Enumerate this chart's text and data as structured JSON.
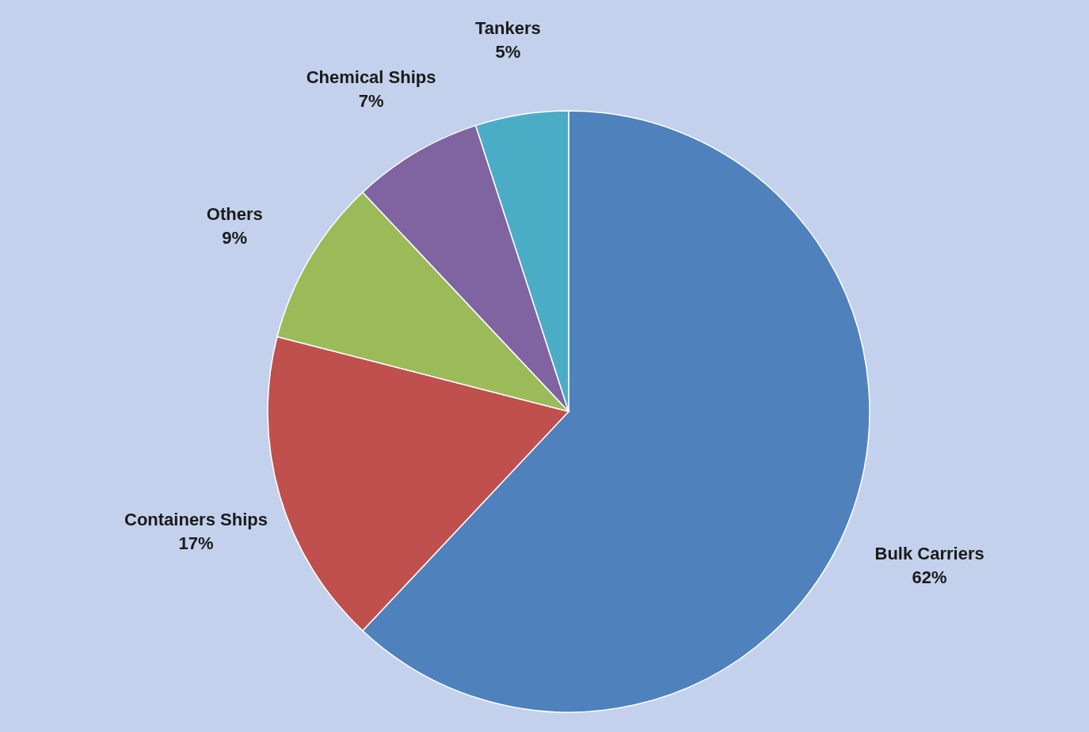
{
  "chart_data": {
    "type": "pie",
    "categories": [
      "Bulk Carriers",
      "Containers Ships",
      "Others",
      "Chemical Ships",
      "Tankers"
    ],
    "values": [
      62,
      17,
      9,
      7,
      5
    ],
    "colors": [
      "#4f81bd",
      "#c0504d",
      "#9bbb59",
      "#8064a2",
      "#4bacc6"
    ],
    "value_labels": [
      "62%",
      "17%",
      "9%",
      "7%",
      "5%"
    ]
  }
}
